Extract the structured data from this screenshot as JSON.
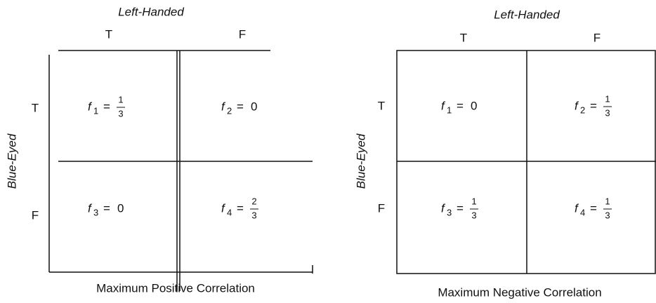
{
  "panels": [
    {
      "column_title": "Left-Handed",
      "row_title": "Blue-Eyed",
      "columns": [
        "T",
        "F"
      ],
      "rows": [
        "T",
        "F"
      ],
      "cells": [
        {
          "symbol": "f",
          "index": "1",
          "relation": "=",
          "numerator": "1",
          "denominator": "3"
        },
        {
          "symbol": "f",
          "index": "2",
          "relation": "=",
          "value": "0"
        },
        {
          "symbol": "f",
          "index": "3",
          "relation": "=",
          "value": "0"
        },
        {
          "symbol": "f",
          "index": "4",
          "relation": "=",
          "numerator": "2",
          "denominator": "3"
        }
      ],
      "caption": "Maximum Positive Correlation"
    },
    {
      "column_title": "Left-Handed",
      "row_title": "Blue-Eyed",
      "columns": [
        "T",
        "F"
      ],
      "rows": [
        "T",
        "F"
      ],
      "cells": [
        {
          "symbol": "f",
          "index": "1",
          "relation": "=",
          "value": "0"
        },
        {
          "symbol": "f",
          "index": "2",
          "relation": "=",
          "numerator": "1",
          "denominator": "3"
        },
        {
          "symbol": "f",
          "index": "3",
          "relation": "=",
          "numerator": "1",
          "denominator": "3"
        },
        {
          "symbol": "f",
          "index": "4",
          "relation": "=",
          "numerator": "1",
          "denominator": "3"
        }
      ],
      "caption": "Maximum Negative Correlation"
    }
  ]
}
